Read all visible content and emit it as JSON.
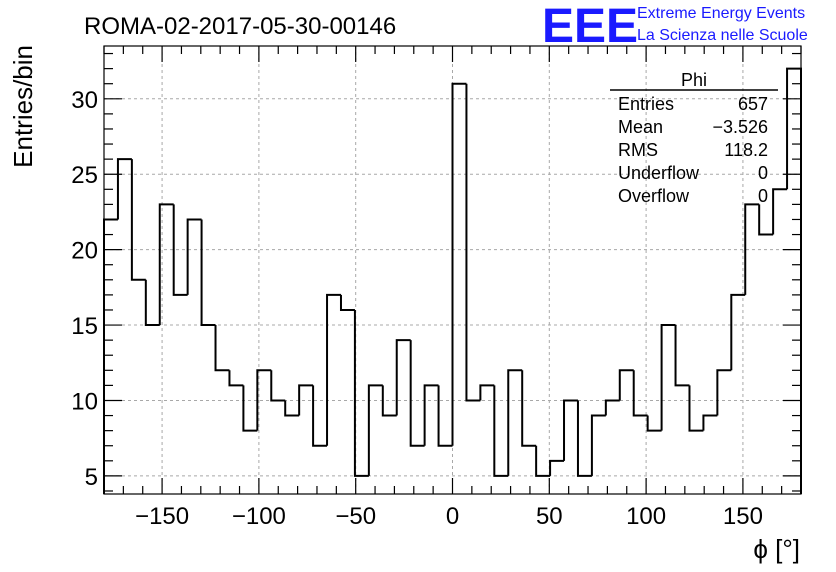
{
  "title": "ROMA-02-2017-05-30-00146",
  "logo": {
    "mark": "EEE",
    "line1": "Extreme Energy Events",
    "line2": "La Scienza nelle Scuole",
    "color": "#1a1aff"
  },
  "stats": {
    "header": "Phi",
    "rows": [
      {
        "label": "Entries",
        "value": "657"
      },
      {
        "label": "Mean",
        "value": "−3.526"
      },
      {
        "label": "RMS",
        "value": "118.2"
      },
      {
        "label": "Underflow",
        "value": "0"
      },
      {
        "label": "Overflow",
        "value": "0"
      }
    ]
  },
  "chart_data": {
    "type": "bar",
    "histogram": "step",
    "title": "ROMA-02-2017-05-30-00146",
    "xlabel": "ϕ [°]",
    "ylabel": "Entries/bin",
    "xlim": [
      -180,
      180
    ],
    "ylim": [
      3.8,
      33.5
    ],
    "bin_width": 7.2,
    "grid": true,
    "legend": "top-right",
    "xticks": [
      -150,
      -100,
      -50,
      0,
      50,
      100,
      150
    ],
    "xtick_labels": [
      "−150",
      "−100",
      "−50",
      "0",
      "50",
      "100",
      "150"
    ],
    "yticks": [
      5,
      10,
      15,
      20,
      25,
      30
    ],
    "ytick_labels": [
      "5",
      "10",
      "15",
      "20",
      "25",
      "30"
    ],
    "values": [
      22,
      26,
      18,
      15,
      23,
      17,
      22,
      15,
      12,
      11,
      8,
      12,
      10,
      9,
      11,
      7,
      17,
      16,
      5,
      11,
      9,
      14,
      7,
      11,
      7,
      31,
      10,
      11,
      5,
      12,
      7,
      5,
      6,
      10,
      5,
      9,
      10,
      12,
      9,
      8,
      15,
      11,
      8,
      9,
      12,
      17,
      23,
      21,
      24,
      32
    ]
  }
}
